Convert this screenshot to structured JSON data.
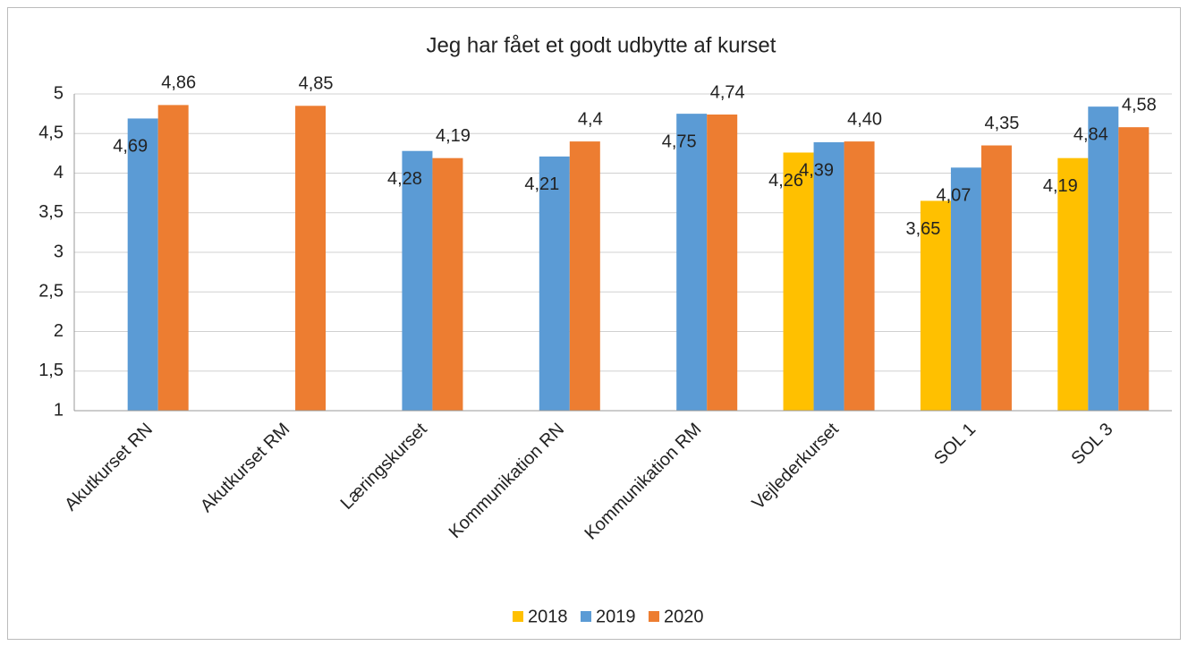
{
  "chart_data": {
    "type": "bar",
    "title": "Jeg har fået et godt udbytte af kurset",
    "categories": [
      "Akutkurset RN",
      "Akutkurset RM",
      "Læringskurset",
      "Kommunikation RN",
      "Kommunikation RM",
      "Vejlederkurset",
      "SOL 1",
      "SOL 3"
    ],
    "series": [
      {
        "name": "2018",
        "color": "#ffc000",
        "values": [
          null,
          null,
          null,
          null,
          null,
          4.26,
          3.65,
          4.19
        ],
        "value_labels": [
          null,
          null,
          null,
          null,
          null,
          "4,26",
          "3,65",
          "4,19"
        ]
      },
      {
        "name": "2019",
        "color": "#5b9bd5",
        "values": [
          4.69,
          null,
          4.28,
          4.21,
          4.75,
          4.39,
          4.07,
          4.84
        ],
        "value_labels": [
          "4,69",
          null,
          "4,28",
          "4,21",
          "4,75",
          "4,39",
          "4,07",
          "4,84"
        ]
      },
      {
        "name": "2020",
        "color": "#ed7d31",
        "values": [
          4.86,
          4.85,
          4.19,
          4.4,
          4.74,
          4.4,
          4.35,
          4.58
        ],
        "value_labels": [
          "4,86",
          "4,85",
          "4,19",
          "4,4",
          "4,74",
          "4,40",
          "4,35",
          "4,58"
        ]
      }
    ],
    "ylim": [
      1,
      5
    ],
    "yticks": [
      1,
      {
        "value": 1.5,
        "label": "1,5"
      },
      2,
      {
        "value": 2.5,
        "label": "2,5"
      },
      3,
      {
        "value": 3.5,
        "label": "3,5"
      },
      4,
      {
        "value": 4.5,
        "label": "4,5"
      },
      5
    ],
    "grid": true,
    "legend": "bottom"
  }
}
